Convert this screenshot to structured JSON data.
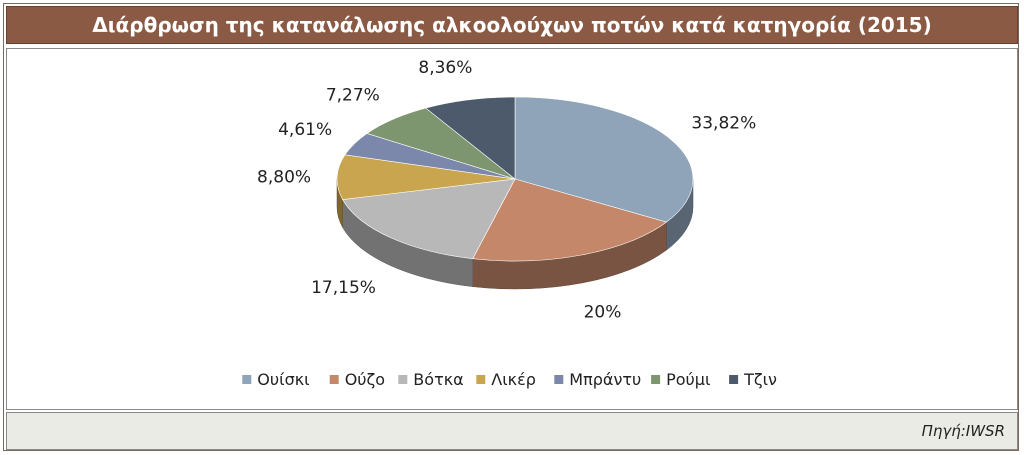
{
  "header": {
    "title": "Διάρθρωση της κατανάλωσης αλκοολούχων ποτών κατά κατηγορία (2015)"
  },
  "footer": {
    "source": "Πηγή:IWSR"
  },
  "chart_data": {
    "type": "pie",
    "title": "Διάρθρωση της κατανάλωσης αλκοολούχων ποτών κατά κατηγορία (2015)",
    "categories": [
      "Ουίσκι",
      "Ούζο",
      "Βότκα",
      "Λικέρ",
      "Μπράντυ",
      "Ρούμι",
      "Τζιν"
    ],
    "values": [
      33.82,
      20,
      17.15,
      8.8,
      4.61,
      7.27,
      8.36
    ],
    "labels": [
      "33,82%",
      "20%",
      "17,15%",
      "8,80%",
      "4,61%",
      "7,27%",
      "8,36%"
    ],
    "colors": [
      "#8fa3b9",
      "#c4876a",
      "#b8b8b8",
      "#c9a54f",
      "#7b87ab",
      "#7d9670",
      "#4c5a6b"
    ],
    "legend": "bottom",
    "style": "3d"
  }
}
